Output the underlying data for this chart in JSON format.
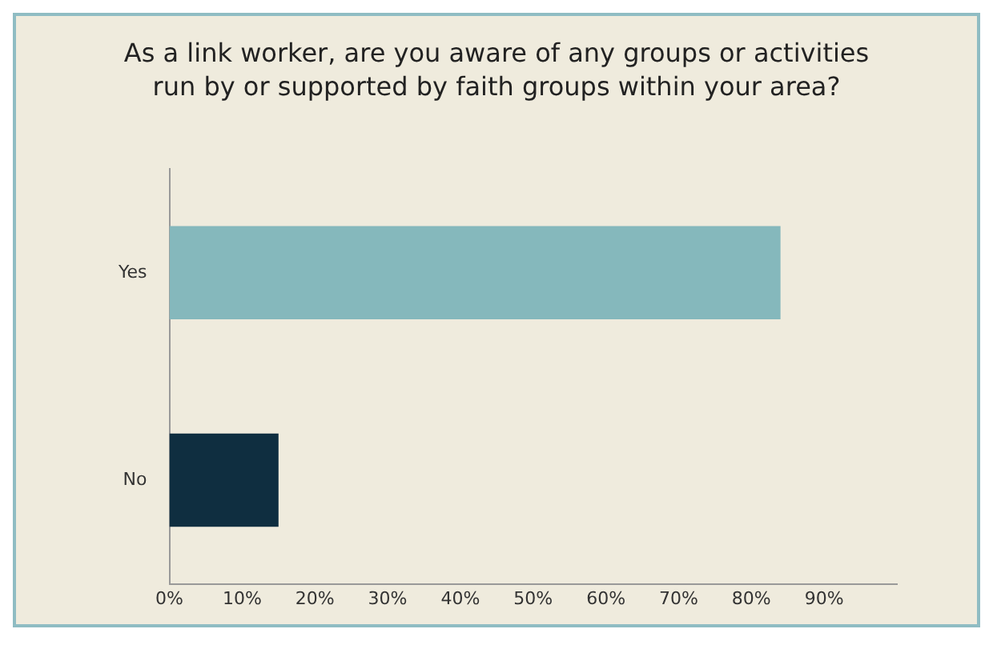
{
  "chart_data": {
    "type": "bar",
    "orientation": "horizontal",
    "title": [
      "As a link worker, are you aware of any groups or activities",
      "run by or supported by faith groups within your area?"
    ],
    "categories": [
      "Yes",
      "No"
    ],
    "values": [
      84,
      15
    ],
    "colors": [
      "#85b8bc",
      "#0f2e40"
    ],
    "xlim": [
      0,
      100
    ],
    "xticks": [
      {
        "value": 0,
        "label": "0%"
      },
      {
        "value": 10,
        "label": "10%"
      },
      {
        "value": 20,
        "label": "20%"
      },
      {
        "value": 30,
        "label": "30%"
      },
      {
        "value": 40,
        "label": "40%"
      },
      {
        "value": 50,
        "label": "50%"
      },
      {
        "value": 60,
        "label": "60%"
      },
      {
        "value": 70,
        "label": "70%"
      },
      {
        "value": 80,
        "label": "80%"
      },
      {
        "value": 90,
        "label": "90%"
      }
    ],
    "grid": false,
    "legend": false
  }
}
